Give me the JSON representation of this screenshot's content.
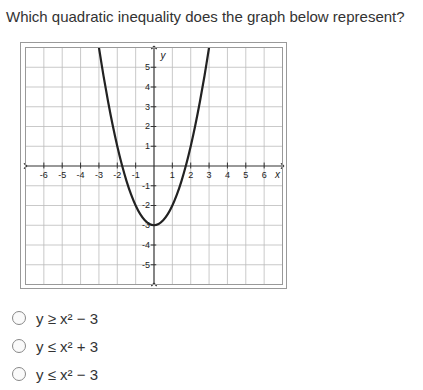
{
  "question": "Which quadratic inequality does the graph below represent?",
  "chart_data": {
    "type": "line",
    "x_label": "x",
    "y_label": "y",
    "x": [
      -3,
      -2.75,
      -2.5,
      -2.25,
      -2,
      -1.75,
      -1.5,
      -1.25,
      -1,
      -0.75,
      -0.5,
      -0.25,
      0,
      0.25,
      0.5,
      0.75,
      1,
      1.25,
      1.5,
      1.75,
      2,
      2.25,
      2.5,
      2.75,
      3
    ],
    "values": [
      6,
      4.56,
      3.25,
      2.06,
      1,
      0.06,
      -0.75,
      -1.44,
      -2,
      -2.44,
      -2.75,
      -2.94,
      -3,
      -2.94,
      -2.75,
      -2.44,
      -2,
      -1.44,
      -0.75,
      0.06,
      1,
      2.06,
      3.25,
      4.56,
      6
    ],
    "xlim": [
      -7,
      7
    ],
    "ylim": [
      -6,
      6
    ],
    "xticks": [
      -6,
      -5,
      -4,
      -3,
      -2,
      -1,
      1,
      2,
      3,
      4,
      5,
      6
    ],
    "yticks": [
      -5,
      -4,
      -3,
      -2,
      -1,
      1,
      2,
      3,
      4,
      5
    ],
    "grid": true,
    "color": "#222222",
    "line_style": "solid"
  },
  "options": [
    "y ≥ x² − 3",
    "y ≤ x² + 3",
    "y ≤ x² − 3"
  ]
}
